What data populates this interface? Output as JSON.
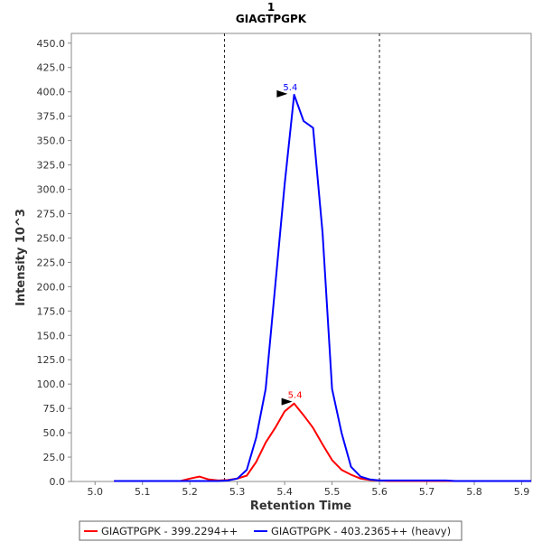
{
  "chart_data": {
    "type": "line",
    "title": "1",
    "subtitle": "GIAGTPGPK",
    "xlabel": "Retention Time",
    "ylabel": "Intensity 10^3",
    "xlim": [
      4.95,
      5.92
    ],
    "ylim": [
      0,
      460
    ],
    "x_ticks": [
      5.0,
      5.1,
      5.2,
      5.3,
      5.4,
      5.5,
      5.6,
      5.7,
      5.8,
      5.9
    ],
    "x_tick_labels": [
      "5.0",
      "5.1",
      "5.2",
      "5.3",
      "5.4",
      "5.5",
      "5.6",
      "5.7",
      "5.8",
      "5.9"
    ],
    "y_ticks": [
      0,
      25,
      50,
      75,
      100,
      125,
      150,
      175,
      200,
      225,
      250,
      275,
      300,
      325,
      350,
      375,
      400,
      425,
      450
    ],
    "y_tick_labels": [
      "0.0",
      "25.0",
      "50.0",
      "75.0",
      "100.0",
      "125.0",
      "150.0",
      "175.0",
      "200.0",
      "225.0",
      "250.0",
      "275.0",
      "300.0",
      "325.0",
      "350.0",
      "375.0",
      "400.0",
      "425.0",
      "450.0"
    ],
    "grid": false,
    "legend_position": "bottom",
    "integration_bounds": [
      5.273,
      5.6
    ],
    "series": [
      {
        "name": "GIAGTPGPK - 399.2294++",
        "color": "#ff0000",
        "x": [
          5.04,
          5.06,
          5.08,
          5.1,
          5.12,
          5.14,
          5.16,
          5.18,
          5.2,
          5.22,
          5.24,
          5.26,
          5.28,
          5.3,
          5.32,
          5.34,
          5.36,
          5.38,
          5.4,
          5.42,
          5.44,
          5.46,
          5.48,
          5.5,
          5.52,
          5.54,
          5.56,
          5.58,
          5.6,
          5.62,
          5.64,
          5.66,
          5.68,
          5.7,
          5.72,
          5.74,
          5.76,
          5.78,
          5.8,
          5.82,
          5.84,
          5.86,
          5.88,
          5.9,
          5.92
        ],
        "values": [
          0.5,
          0.5,
          0.5,
          0.5,
          0.5,
          0.5,
          0.5,
          0.5,
          3,
          5,
          2,
          1,
          1.5,
          3,
          6,
          20,
          40,
          55,
          72,
          80,
          68,
          55,
          38,
          22,
          12,
          7,
          3,
          1.5,
          1,
          0.5,
          0.5,
          0.5,
          0.5,
          0.5,
          0.5,
          0.5,
          0.5,
          0.5,
          0.5,
          0.5,
          0.5,
          0.5,
          0.5,
          0.5,
          0.5
        ],
        "peak_label": "5.4",
        "peak_x": 5.42,
        "peak_y": 81
      },
      {
        "name": "GIAGTPGPK - 403.2365++ (heavy)",
        "color": "#0000ff",
        "x": [
          5.04,
          5.06,
          5.08,
          5.1,
          5.12,
          5.14,
          5.16,
          5.18,
          5.2,
          5.22,
          5.24,
          5.26,
          5.28,
          5.3,
          5.32,
          5.34,
          5.36,
          5.38,
          5.4,
          5.42,
          5.44,
          5.46,
          5.48,
          5.5,
          5.52,
          5.54,
          5.56,
          5.58,
          5.6,
          5.62,
          5.64,
          5.66,
          5.68,
          5.7,
          5.72,
          5.74,
          5.76,
          5.78,
          5.8,
          5.82,
          5.84,
          5.86,
          5.88,
          5.9,
          5.92
        ],
        "values": [
          0.5,
          0.5,
          0.5,
          0.5,
          0.5,
          0.5,
          0.5,
          0.5,
          0.5,
          0.5,
          0.5,
          0.5,
          1,
          3,
          12,
          45,
          95,
          200,
          305,
          397,
          370,
          363,
          255,
          95,
          50,
          15,
          5,
          2,
          1,
          1,
          1,
          1,
          1,
          1,
          1,
          1,
          0.5,
          0.5,
          0.5,
          0.5,
          0.5,
          0.5,
          0.5,
          0.5,
          0.5
        ],
        "peak_label": "5.4",
        "peak_x": 5.41,
        "peak_y": 397
      }
    ]
  }
}
